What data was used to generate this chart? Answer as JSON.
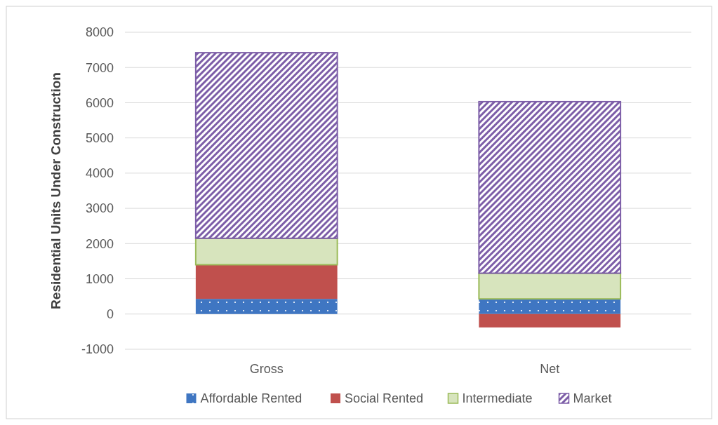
{
  "chart_data": {
    "type": "bar",
    "stacked": true,
    "ylabel": "Residential Units  Under Construction",
    "categories": [
      "Gross",
      "Net"
    ],
    "series": [
      {
        "name": "Affordable Rented",
        "color": "#3f76c2",
        "values": [
          430,
          430
        ]
      },
      {
        "name": "Social Rented",
        "color": "#c0504d",
        "values": [
          970,
          -380
        ]
      },
      {
        "name": "Intermediate",
        "color": "#d7e4bd",
        "values": [
          750,
          730
        ]
      },
      {
        "name": "Market",
        "color": "#7d5ea8",
        "values": [
          5270,
          4870
        ]
      }
    ],
    "ylim": [
      -1000,
      8000
    ],
    "yticks": [
      -1000,
      0,
      1000,
      2000,
      3000,
      4000,
      5000,
      6000,
      7000,
      8000
    ],
    "grid": "y",
    "legend": "bottom"
  }
}
